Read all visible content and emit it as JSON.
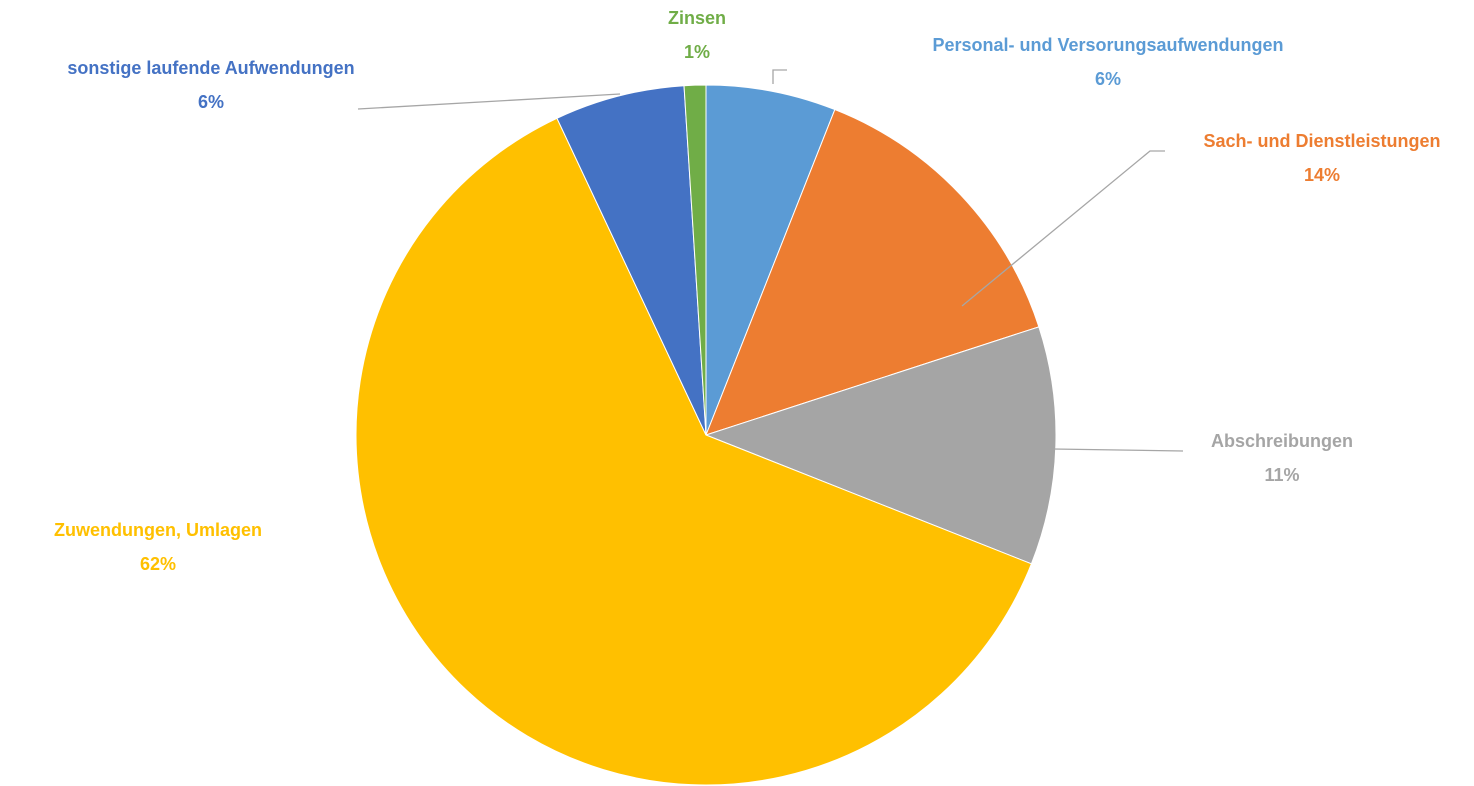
{
  "chart_data": {
    "type": "pie",
    "categories": [
      "Personal- und Versorungsaufwendungen",
      "Sach- und Dienstleistungen",
      "Abschreibungen",
      "Zuwendungen, Umlagen",
      "sonstige laufende Aufwendungen",
      "Zinsen"
    ],
    "values": [
      6,
      14,
      11,
      62,
      6,
      1
    ],
    "value_labels": [
      "6%",
      "14%",
      "11%",
      "62%",
      "6%",
      "1%"
    ],
    "colors": [
      "#5b9bd5",
      "#ed7d31",
      "#a5a5a5",
      "#ffc000",
      "#4472c4",
      "#70ad47"
    ],
    "start_angle": 0,
    "direction": "clockwise"
  }
}
